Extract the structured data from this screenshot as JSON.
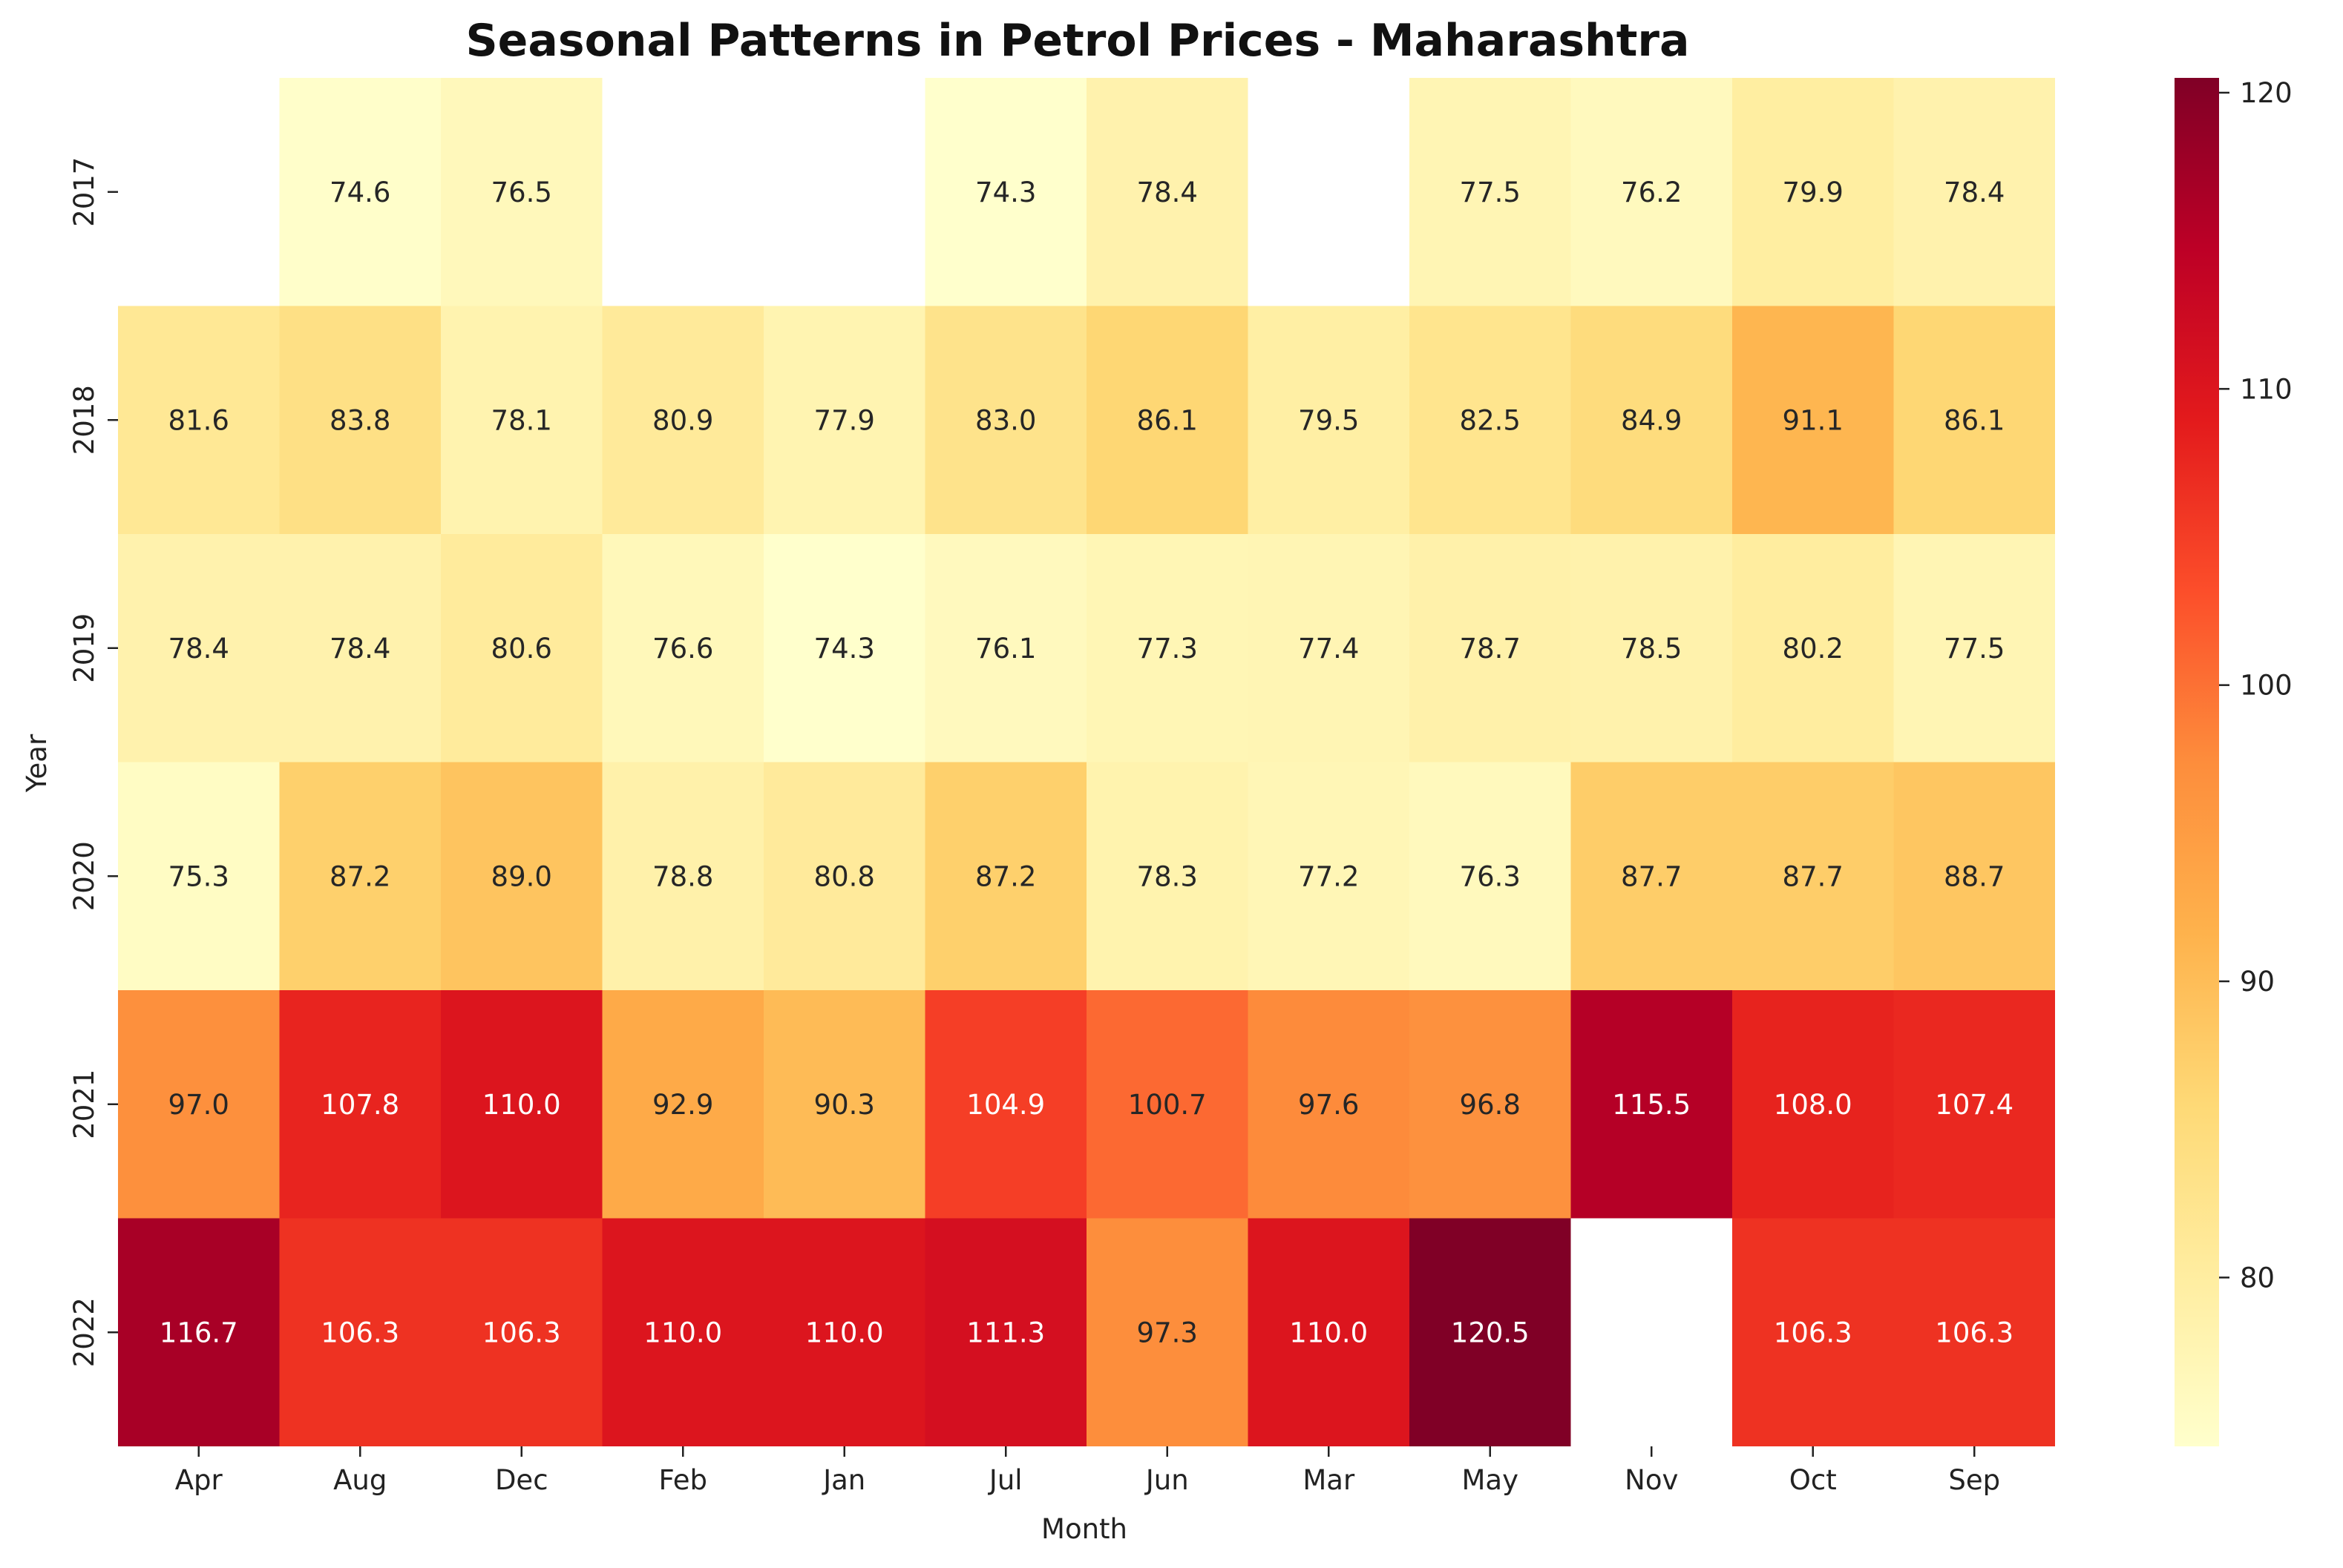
{
  "chart_data": {
    "type": "heatmap",
    "title": "Seasonal Patterns in Petrol Prices - Maharashtra",
    "xlabel": "Month",
    "ylabel": "Year",
    "x_categories": [
      "Apr",
      "Aug",
      "Dec",
      "Feb",
      "Jan",
      "Jul",
      "Jun",
      "Mar",
      "May",
      "Nov",
      "Oct",
      "Sep"
    ],
    "y_categories": [
      "2017",
      "2018",
      "2019",
      "2020",
      "2021",
      "2022"
    ],
    "values": [
      [
        null,
        74.6,
        76.5,
        null,
        null,
        74.3,
        78.4,
        null,
        77.5,
        76.2,
        79.9,
        78.4
      ],
      [
        81.6,
        83.8,
        78.1,
        80.9,
        77.9,
        83.0,
        86.1,
        79.5,
        82.5,
        84.9,
        91.1,
        86.1
      ],
      [
        78.4,
        78.4,
        80.6,
        76.6,
        74.3,
        76.1,
        77.3,
        77.4,
        78.7,
        78.5,
        80.2,
        77.5
      ],
      [
        75.3,
        87.2,
        89.0,
        78.8,
        80.8,
        87.2,
        78.3,
        77.2,
        76.3,
        87.7,
        87.7,
        88.7
      ],
      [
        97.0,
        107.8,
        110.0,
        92.9,
        90.3,
        104.9,
        100.7,
        97.6,
        96.8,
        115.5,
        108.0,
        107.4
      ],
      [
        116.7,
        106.3,
        106.3,
        110.0,
        110.0,
        111.3,
        97.3,
        110.0,
        120.5,
        null,
        106.3,
        106.3
      ]
    ],
    "colormap": "YlOrRd",
    "colorbar": {
      "range": [
        74.3,
        120.5
      ],
      "ticks": [
        80,
        90,
        100,
        110,
        120
      ]
    },
    "annotations": "cell values shown with one decimal"
  }
}
